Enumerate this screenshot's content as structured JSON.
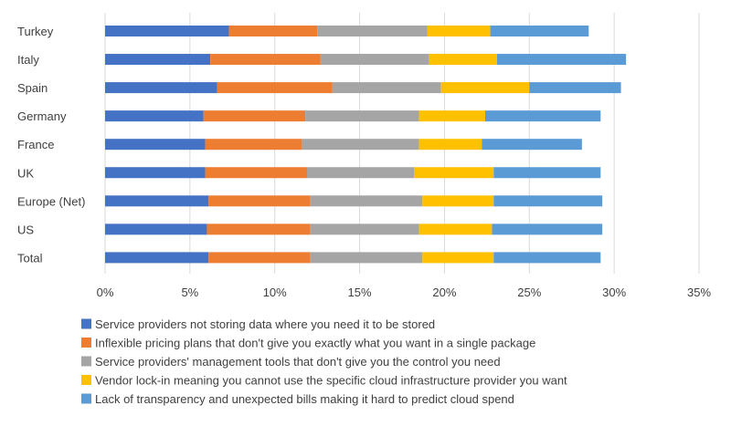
{
  "chart_data": {
    "type": "bar",
    "orientation": "horizontal",
    "stacked": true,
    "title": "",
    "xlabel": "",
    "ylabel": "",
    "xlim": [
      0,
      35
    ],
    "x_ticks": [
      "0%",
      "5%",
      "10%",
      "15%",
      "20%",
      "25%",
      "30%",
      "35%"
    ],
    "grid": true,
    "legend_position": "bottom",
    "categories": [
      "Turkey",
      "Italy",
      "Spain",
      "Germany",
      "France",
      "UK",
      "Europe (Net)",
      "US",
      "Total"
    ],
    "series": [
      {
        "name": "Service providers not storing data where you need it to be stored",
        "color": "#4472C4",
        "values": [
          7.3,
          6.2,
          6.6,
          5.8,
          5.9,
          5.9,
          6.1,
          6.0,
          6.1
        ]
      },
      {
        "name": "Inflexible pricing plans that don't give you exactly what you want in a single package",
        "color": "#ED7D31",
        "values": [
          5.2,
          6.5,
          6.8,
          6.0,
          5.7,
          6.0,
          6.0,
          6.1,
          6.0
        ]
      },
      {
        "name": "Service providers' management tools that don't give you the control you need",
        "color": "#A5A5A5",
        "values": [
          6.5,
          6.4,
          6.4,
          6.7,
          6.9,
          6.3,
          6.6,
          6.4,
          6.6
        ]
      },
      {
        "name": "Vendor lock-in meaning you cannot use the specific cloud infrastructure provider you want",
        "color": "#FFC000",
        "values": [
          3.7,
          4.0,
          5.2,
          3.9,
          3.7,
          4.7,
          4.2,
          4.3,
          4.2
        ]
      },
      {
        "name": "Lack of transparency and unexpected bills making it hard to predict cloud spend",
        "color": "#5B9BD5",
        "values": [
          5.8,
          7.6,
          5.4,
          6.8,
          5.9,
          6.3,
          6.4,
          6.5,
          6.3
        ]
      }
    ]
  }
}
